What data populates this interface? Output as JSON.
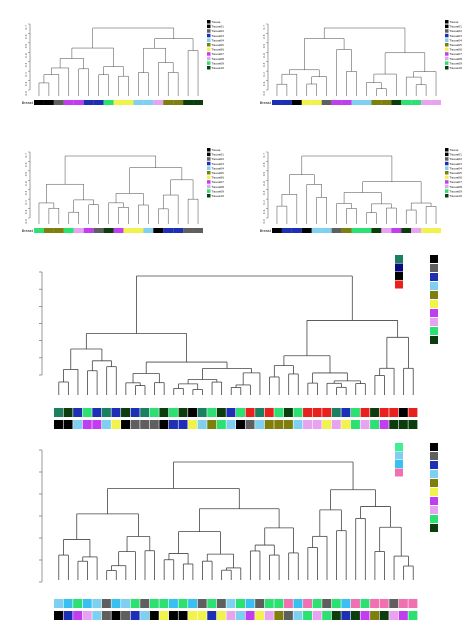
{
  "colors": {
    "c1": "#000000",
    "c2": "#5f5f5f",
    "c3": "#1c2fb5",
    "c4": "#7ecff0",
    "c5": "#7f7f0e",
    "c6": "#f2f24d",
    "c7": "#c03ef0",
    "c8": "#e7a3f0",
    "c9": "#2de072",
    "c10": "#0c3d0c",
    "teal": "#1a8060",
    "navy": "#0a0a80",
    "red": "#e8201e",
    "cyan": "#38c0f0",
    "pink": "#f070b0",
    "lime": "#40f090"
  },
  "small_panels": [
    {
      "bar_label": "Breast",
      "legend_items": [
        "Tissue",
        "Tissue01",
        "Tissue02",
        "Tissue03",
        "Tissue04",
        "Tissue05",
        "Tissue06",
        "Tissue07",
        "Tissue08",
        "Tissue09",
        "Tissue10"
      ],
      "tick_labels": [
        "0.7",
        "0.6",
        "0.5",
        "0.4",
        "0.3",
        "0.2",
        "0.1",
        "0.0"
      ],
      "leaf_colors": [
        "c1",
        "c1",
        "c2",
        "c7",
        "c7",
        "c3",
        "c3",
        "c9",
        "c6",
        "c6",
        "c4",
        "c4",
        "c8",
        "c5",
        "c5",
        "c10",
        "c10"
      ]
    },
    {
      "bar_label": "Breast",
      "legend_items": [
        "Tissue",
        "Tissue01",
        "Tissue02",
        "Tissue03",
        "Tissue04",
        "Tissue05",
        "Tissue06",
        "Tissue07",
        "Tissue08",
        "Tissue09",
        "Tissue10"
      ],
      "tick_labels": [
        "0.7",
        "0.6",
        "0.5",
        "0.4",
        "0.3",
        "0.2",
        "0.1",
        "0.0"
      ],
      "leaf_colors": [
        "c3",
        "c3",
        "c1",
        "c6",
        "c6",
        "c2",
        "c7",
        "c7",
        "c4",
        "c4",
        "c5",
        "c5",
        "c10",
        "c9",
        "c9",
        "c8",
        "c8"
      ]
    },
    {
      "bar_label": "Breast",
      "legend_items": [
        "Tissue",
        "Tissue01",
        "Tissue02",
        "Tissue03",
        "Tissue04",
        "Tissue05",
        "Tissue06",
        "Tissue07",
        "Tissue08",
        "Tissue09",
        "Tissue10"
      ],
      "tick_labels": [
        "0.7",
        "0.6",
        "0.5",
        "0.4",
        "0.3",
        "0.2",
        "0.1",
        "0.0"
      ],
      "leaf_colors": [
        "c9",
        "c5",
        "c5",
        "c9",
        "c8",
        "c7",
        "c2",
        "c10",
        "c7",
        "c6",
        "c6",
        "c4",
        "c1",
        "c3",
        "c3",
        "c2",
        "c2"
      ]
    },
    {
      "bar_label": "Breast",
      "legend_items": [
        "Tissue",
        "Tissue01",
        "Tissue02",
        "Tissue03",
        "Tissue04",
        "Tissue05",
        "Tissue06",
        "Tissue07",
        "Tissue08",
        "Tissue09",
        "Tissue10"
      ],
      "tick_labels": [
        "0.7",
        "0.6",
        "0.5",
        "0.4",
        "0.3",
        "0.2",
        "0.1",
        "0.0"
      ],
      "leaf_colors": [
        "c1",
        "c3",
        "c3",
        "c1",
        "c4",
        "c4",
        "c2",
        "c5",
        "c9",
        "c9",
        "c10",
        "c8",
        "c7",
        "c10",
        "c8",
        "c6",
        "c6"
      ]
    }
  ],
  "large_panels": [
    {
      "row1": [
        "teal",
        "c10",
        "c3",
        "c9",
        "c3",
        "teal",
        "c3",
        "c10",
        "c3",
        "teal",
        "c9",
        "c10",
        "c9",
        "c10",
        "c1",
        "teal",
        "c9",
        "c10",
        "c3",
        "c9",
        "red",
        "teal",
        "red",
        "c9",
        "c10",
        "c9",
        "red",
        "red",
        "red",
        "teal",
        "c3",
        "c9",
        "red",
        "c10",
        "red",
        "red",
        "c1",
        "red"
      ],
      "row2": [
        "c1",
        "c1",
        "c4",
        "c7",
        "c7",
        "c4",
        "c6",
        "c1",
        "c2",
        "c2",
        "c2",
        "c1",
        "c3",
        "c3",
        "c6",
        "c4",
        "c5",
        "c9",
        "c4",
        "c1",
        "c2",
        "c4",
        "c5",
        "c5",
        "c5",
        "c4",
        "c8",
        "c8",
        "c6",
        "c8",
        "c6",
        "c9",
        "c8",
        "c9",
        "c7",
        "c10",
        "c10",
        "c10"
      ],
      "legend_a": [
        "teal",
        "navy",
        "c1",
        "red"
      ],
      "legend_b": [
        "c1",
        "c2",
        "c3",
        "c4",
        "c5",
        "c6",
        "c7",
        "c8",
        "c9",
        "c10"
      ]
    },
    {
      "row1": [
        "c4",
        "cyan",
        "c9",
        "cyan",
        "c4",
        "c2",
        "cyan",
        "c4",
        "c9",
        "c2",
        "c9",
        "c9",
        "cyan",
        "c9",
        "cyan",
        "c2",
        "c9",
        "c2",
        "c4",
        "c9",
        "cyan",
        "c2",
        "c9",
        "c9",
        "pink",
        "cyan",
        "pink",
        "c9",
        "c2",
        "c9",
        "cyan",
        "pink",
        "c9",
        "pink",
        "pink",
        "c2",
        "pink",
        "pink"
      ],
      "row2": [
        "c1",
        "c3",
        "c7",
        "c8",
        "c4",
        "c2",
        "c1",
        "c2",
        "c3",
        "c4",
        "c1",
        "c6",
        "c1",
        "c1",
        "c6",
        "c6",
        "c3",
        "c6",
        "c8",
        "c4",
        "c7",
        "c6",
        "c8",
        "c5",
        "c2",
        "c4",
        "c9",
        "c8",
        "c9",
        "c10",
        "c3",
        "c10",
        "c7",
        "c5",
        "c10",
        "c8",
        "c7",
        "c9"
      ],
      "legend_a": [
        "lime",
        "c4",
        "cyan",
        "pink"
      ],
      "legend_b": [
        "c1",
        "c2",
        "c3",
        "c4",
        "c5",
        "c6",
        "c7",
        "c8",
        "c9",
        "c10"
      ]
    }
  ]
}
